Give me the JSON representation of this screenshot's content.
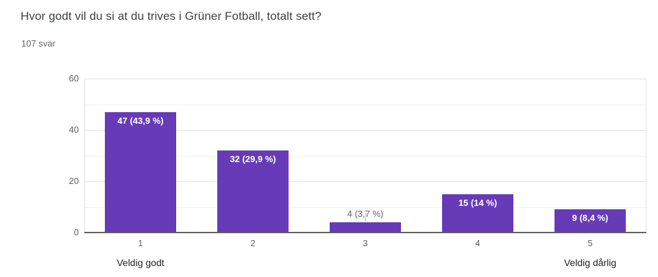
{
  "chart_data": {
    "type": "bar",
    "title": "Hvor godt vil du si at du trives i Grüner Fotball, totalt sett?",
    "subtitle": "107 svar",
    "categories": [
      "1",
      "2",
      "3",
      "4",
      "5"
    ],
    "values": [
      47,
      32,
      4,
      15,
      9
    ],
    "bar_labels": [
      "47 (43,9 %)",
      "32 (29,9 %)",
      "4 (3,7 %)",
      "15 (14 %)",
      "9 (8,4 %)"
    ],
    "axis_end_labels": {
      "min": "Veldig godt",
      "max": "Veldig dårlig"
    },
    "xlabel": "",
    "ylabel": "",
    "yticks": [
      0,
      20,
      40,
      60
    ],
    "ylim": [
      0,
      60
    ],
    "grid_step": 10,
    "grid": "on",
    "legend": "none",
    "colors": {
      "bar": "#673ab7",
      "bar_label_inside": "#ffffff",
      "bar_label_outside": "#5f6368",
      "leader_line": "#bdbdbd",
      "axis_line": "#616161",
      "gridline_major": "#e2e2e2",
      "gridline_minor": "#f1f1f1",
      "tick_label": "#616161",
      "category_label": "#5f6368",
      "end_label": "#202124",
      "title": "#3c4043",
      "subtitle": "#5f6368"
    }
  }
}
